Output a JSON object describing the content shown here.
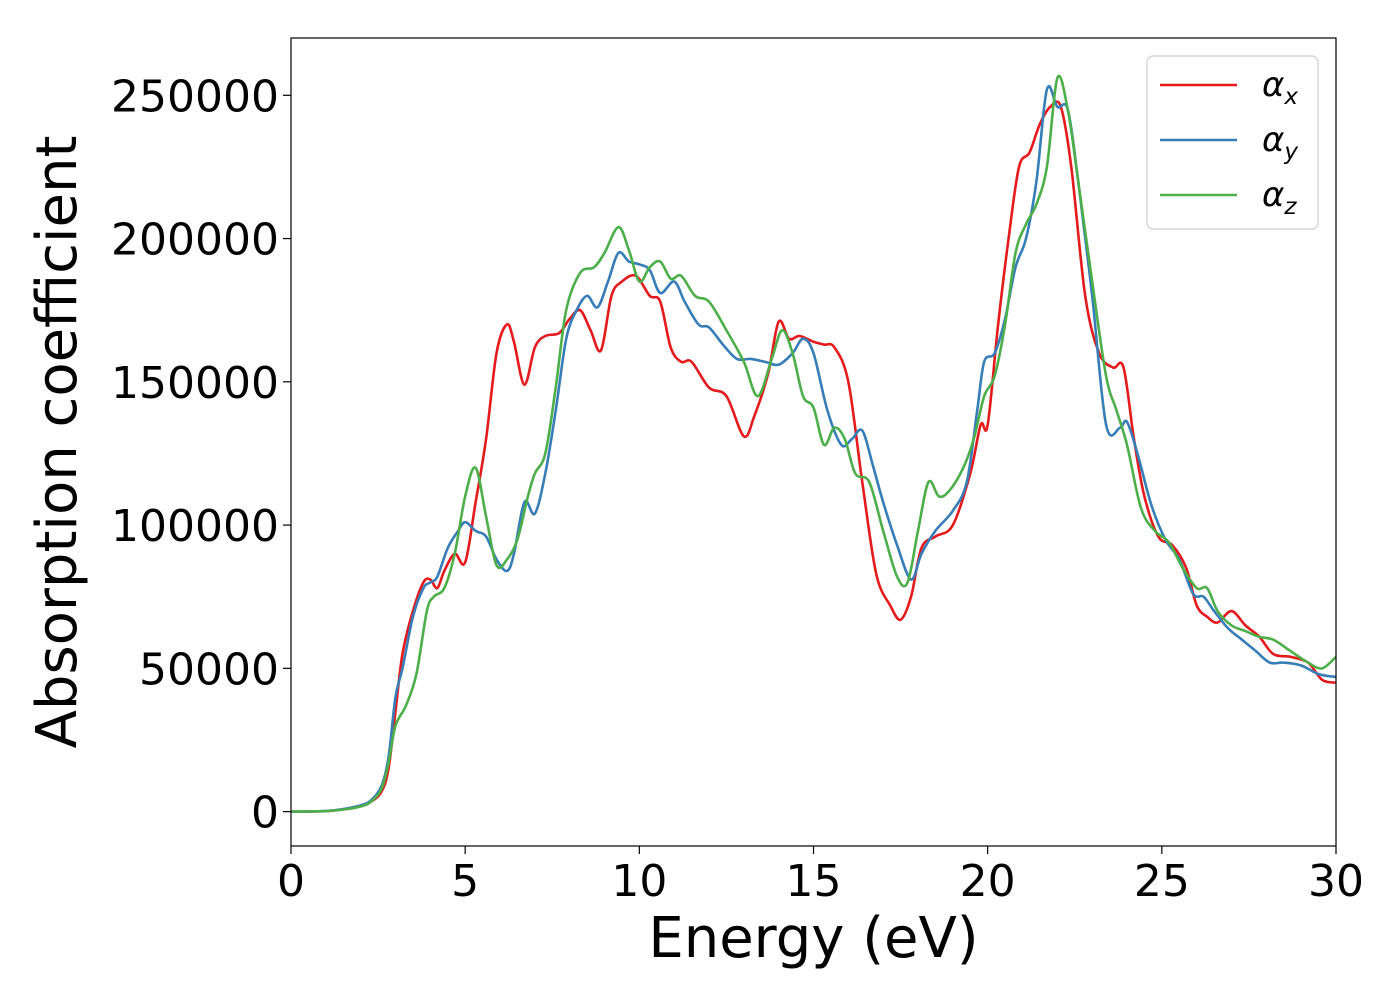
{
  "chart_data": {
    "type": "line",
    "title": "",
    "xlabel": "Energy (eV)",
    "ylabel": "Absorption coefficient",
    "xlim": [
      0,
      30
    ],
    "ylim": [
      -12000,
      270000
    ],
    "xticks": [
      0,
      5,
      10,
      15,
      20,
      25,
      30
    ],
    "xtick_labels": [
      "0",
      "5",
      "10",
      "15",
      "20",
      "25",
      "30"
    ],
    "yticks": [
      0,
      50000,
      100000,
      150000,
      200000,
      250000
    ],
    "ytick_labels": [
      "0",
      "50000",
      "100000",
      "150000",
      "200000",
      "250000"
    ],
    "grid": false,
    "legend_position": "top-right",
    "series": [
      {
        "name": "α",
        "subscript": "x",
        "color": "#e41a1c",
        "x": [
          0,
          1,
          1.5,
          2,
          2.3,
          2.6,
          2.8,
          3.0,
          3.2,
          3.5,
          3.8,
          4.0,
          4.2,
          4.4,
          4.7,
          5.0,
          5.3,
          5.6,
          5.9,
          6.2,
          6.4,
          6.7,
          7.0,
          7.3,
          7.7,
          8.0,
          8.3,
          8.6,
          8.9,
          9.2,
          9.5,
          9.9,
          10.3,
          10.6,
          10.9,
          11.2,
          11.5,
          12.0,
          12.5,
          13.0,
          13.3,
          13.7,
          14.0,
          14.3,
          14.6,
          15.0,
          15.3,
          15.6,
          16.0,
          16.4,
          16.8,
          17.2,
          17.5,
          17.8,
          18.1,
          18.5,
          19.0,
          19.5,
          19.8,
          20.0,
          20.3,
          20.6,
          20.9,
          21.2,
          21.5,
          21.8,
          22.1,
          22.4,
          22.8,
          23.2,
          23.6,
          23.9,
          24.2,
          24.5,
          24.9,
          25.3,
          25.7,
          26.0,
          26.3,
          26.6,
          27.0,
          27.4,
          27.8,
          28.2,
          28.7,
          29.2,
          29.6,
          30.0
        ],
        "values": [
          0,
          200,
          800,
          2000,
          3500,
          7000,
          15000,
          35000,
          55000,
          70000,
          80000,
          81000,
          78000,
          84000,
          90000,
          87000,
          108000,
          130000,
          160000,
          170000,
          164000,
          149000,
          162000,
          166000,
          167000,
          172000,
          175000,
          168000,
          161000,
          180000,
          185000,
          187000,
          180000,
          178000,
          162000,
          157000,
          157000,
          148000,
          145000,
          131000,
          138000,
          153000,
          171000,
          165000,
          166000,
          164000,
          163000,
          162000,
          150000,
          115000,
          83000,
          72000,
          67000,
          75000,
          92000,
          96000,
          100000,
          118000,
          135000,
          135000,
          170000,
          200000,
          225000,
          230000,
          240000,
          246000,
          246000,
          225000,
          180000,
          160000,
          155000,
          155000,
          130000,
          110000,
          96000,
          93000,
          85000,
          72000,
          68000,
          66000,
          70000,
          65000,
          61000,
          55000,
          54000,
          52000,
          46000,
          45000
        ]
      },
      {
        "name": "α",
        "subscript": "y",
        "color": "#377eb8",
        "x": [
          0,
          1,
          1.5,
          2,
          2.3,
          2.6,
          2.8,
          3.0,
          3.2,
          3.5,
          3.8,
          4.0,
          4.2,
          4.5,
          4.8,
          5.0,
          5.3,
          5.6,
          5.9,
          6.2,
          6.4,
          6.7,
          7.0,
          7.3,
          7.6,
          7.9,
          8.2,
          8.5,
          8.8,
          9.1,
          9.4,
          9.7,
          10.0,
          10.3,
          10.6,
          11.0,
          11.3,
          11.7,
          12.0,
          12.4,
          12.8,
          13.2,
          13.6,
          14.0,
          14.4,
          14.7,
          15.0,
          15.4,
          15.8,
          16.1,
          16.4,
          16.7,
          17.0,
          17.4,
          17.8,
          18.1,
          18.5,
          19.0,
          19.4,
          19.7,
          19.9,
          20.2,
          20.5,
          20.8,
          21.1,
          21.4,
          21.7,
          22.0,
          22.3,
          22.6,
          23.0,
          23.4,
          23.8,
          24.0,
          24.3,
          24.7,
          25.1,
          25.5,
          25.9,
          26.2,
          26.5,
          26.9,
          27.3,
          27.7,
          28.1,
          28.5,
          29.0,
          29.5,
          30.0
        ],
        "values": [
          0,
          200,
          900,
          2200,
          4000,
          9000,
          19000,
          40000,
          50000,
          68000,
          78000,
          80000,
          82000,
          92000,
          98000,
          101000,
          98000,
          96000,
          88000,
          84000,
          90000,
          108000,
          104000,
          118000,
          140000,
          165000,
          175000,
          180000,
          176000,
          185000,
          195000,
          192000,
          191000,
          189000,
          181000,
          185000,
          178000,
          170000,
          169000,
          163000,
          158000,
          158000,
          157000,
          156000,
          160000,
          165000,
          160000,
          140000,
          128000,
          130000,
          133000,
          121000,
          108000,
          93000,
          81000,
          90000,
          98000,
          105000,
          115000,
          140000,
          157000,
          160000,
          172000,
          190000,
          200000,
          220000,
          252000,
          246000,
          245000,
          220000,
          180000,
          135000,
          134000,
          136000,
          125000,
          107000,
          95000,
          88000,
          76000,
          75000,
          70000,
          64000,
          60000,
          56000,
          52000,
          52000,
          51000,
          48000,
          47000
        ]
      },
      {
        "name": "α",
        "subscript": "z",
        "color": "#4daf4a",
        "x": [
          0,
          1,
          1.5,
          2,
          2.3,
          2.6,
          2.8,
          3.0,
          3.3,
          3.6,
          3.9,
          4.1,
          4.4,
          4.7,
          5.0,
          5.3,
          5.6,
          5.9,
          6.2,
          6.5,
          6.8,
          7.0,
          7.3,
          7.6,
          7.9,
          8.3,
          8.7,
          9.0,
          9.4,
          9.7,
          10.0,
          10.3,
          10.6,
          10.9,
          11.2,
          11.6,
          12.0,
          12.5,
          13.0,
          13.4,
          13.8,
          14.1,
          14.4,
          14.7,
          15.0,
          15.3,
          15.6,
          15.9,
          16.2,
          16.6,
          17.0,
          17.4,
          17.7,
          18.0,
          18.3,
          18.6,
          18.9,
          19.3,
          19.6,
          19.9,
          20.2,
          20.5,
          20.8,
          21.1,
          21.4,
          21.7,
          22.0,
          22.3,
          22.6,
          23.0,
          23.4,
          23.7,
          24.0,
          24.4,
          24.8,
          25.2,
          25.6,
          26.0,
          26.3,
          26.6,
          27.0,
          27.4,
          27.8,
          28.2,
          28.7,
          29.2,
          29.6,
          30.0
        ],
        "values": [
          0,
          200,
          700,
          1800,
          3500,
          8000,
          17000,
          30000,
          37000,
          48000,
          70000,
          75000,
          78000,
          90000,
          110000,
          120000,
          103000,
          86000,
          88000,
          95000,
          110000,
          118000,
          125000,
          148000,
          175000,
          188000,
          190000,
          195000,
          204000,
          196000,
          185000,
          190000,
          192000,
          186000,
          187000,
          180000,
          178000,
          168000,
          157000,
          145000,
          158000,
          168000,
          160000,
          145000,
          141000,
          128000,
          134000,
          130000,
          118000,
          115000,
          98000,
          82000,
          80000,
          98000,
          115000,
          110000,
          112000,
          120000,
          130000,
          145000,
          152000,
          170000,
          195000,
          205000,
          212000,
          225000,
          256000,
          245000,
          220000,
          185000,
          152000,
          140000,
          128000,
          106000,
          98000,
          94000,
          85000,
          78000,
          78000,
          70000,
          65000,
          63000,
          61000,
          60000,
          56000,
          52000,
          50000,
          54000
        ]
      }
    ]
  }
}
